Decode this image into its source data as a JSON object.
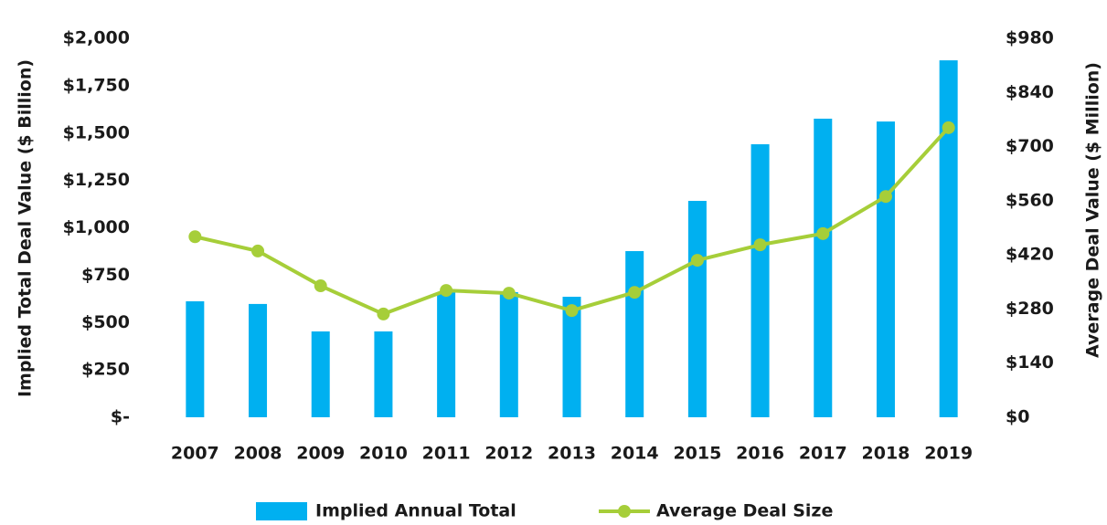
{
  "chart_data": {
    "type": "bar_line",
    "categories": [
      "2007",
      "2008",
      "2009",
      "2010",
      "2011",
      "2012",
      "2013",
      "2014",
      "2015",
      "2016",
      "2017",
      "2018",
      "2019"
    ],
    "series": [
      {
        "name": "Implied Annual Total",
        "color": "#00b0f0",
        "type": "bar",
        "values": [
          612,
          598,
          453,
          453,
          660,
          660,
          636,
          877,
          1142,
          1441,
          1576,
          1561,
          1884
        ]
      },
      {
        "name": "Average Deal Size",
        "color": "#a6ce39",
        "type": "line",
        "axis": "y2",
        "values": [
          467,
          430,
          340,
          267,
          328,
          321,
          276,
          323,
          406,
          446,
          475,
          571,
          749
        ]
      }
    ],
    "ylabel": "Implied Total Deal Value ($ Billion)",
    "y2label": "Average Deal Value ($ Million)",
    "ylim": [
      0,
      2000
    ],
    "yticks": [
      {
        "value": 0,
        "label": "$-"
      },
      {
        "value": 250,
        "label": "$250"
      },
      {
        "value": 500,
        "label": "$500"
      },
      {
        "value": 750,
        "label": "$750"
      },
      {
        "value": 1000,
        "label": "$1,000"
      },
      {
        "value": 1250,
        "label": "$1,250"
      },
      {
        "value": 1500,
        "label": "$1,500"
      },
      {
        "value": 1750,
        "label": "$1,750"
      },
      {
        "value": 2000,
        "label": "$2,000"
      }
    ],
    "y2lim": [
      0,
      980
    ],
    "y2ticks": [
      {
        "value": 0,
        "label": "$0"
      },
      {
        "value": 140,
        "label": "$140"
      },
      {
        "value": 280,
        "label": "$280"
      },
      {
        "value": 420,
        "label": "$420"
      },
      {
        "value": 560,
        "label": "$560"
      },
      {
        "value": 700,
        "label": "$700"
      },
      {
        "value": 840,
        "label": "$840"
      },
      {
        "value": 980,
        "label": "$980"
      }
    ],
    "grid": false
  }
}
